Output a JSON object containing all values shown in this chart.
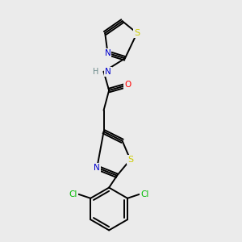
{
  "background_color": "#ebebeb",
  "bond_color": "#000000",
  "N_color": "#0000cc",
  "S_color": "#cccc00",
  "O_color": "#ff0000",
  "Cl_color": "#00bb00",
  "H_color": "#6a8a8a",
  "font_size": 7.5,
  "linewidth": 1.4,
  "figsize": [
    3.0,
    3.0
  ],
  "dpi": 100,
  "xlim": [
    2.5,
    8.5
  ],
  "ylim": [
    0.8,
    9.8
  ]
}
